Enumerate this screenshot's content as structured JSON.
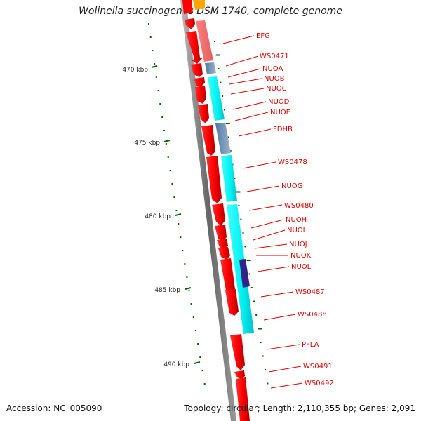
{
  "title": "Wolinella succinogenes DSM 1740, complete genome",
  "footer": {
    "accession": "Accession: NC_005090",
    "summary": "Topology: circular; Length: 2,110,355 bp; Genes: 2,091"
  },
  "ruler": {
    "labels": [
      "470 kbp",
      "475 kbp",
      "480 kbp",
      "485 kbp",
      "490 kbp"
    ]
  },
  "genes": [
    "EFG",
    "WS0471",
    "NUOA",
    "NUOB",
    "NUOC",
    "NUOD",
    "NUOE",
    "FDHB",
    "WS0478",
    "NUOG",
    "WS0480",
    "NUOH",
    "NUOI",
    "NUOJ",
    "NUOK",
    "NUOL",
    "WS0487",
    "WS0488",
    "PFLA",
    "WS0491",
    "WS0492"
  ],
  "colors": {
    "gene": "#ff0000",
    "cds": "#00ffff",
    "label_line": "#dd0000",
    "tick": "#006600"
  }
}
